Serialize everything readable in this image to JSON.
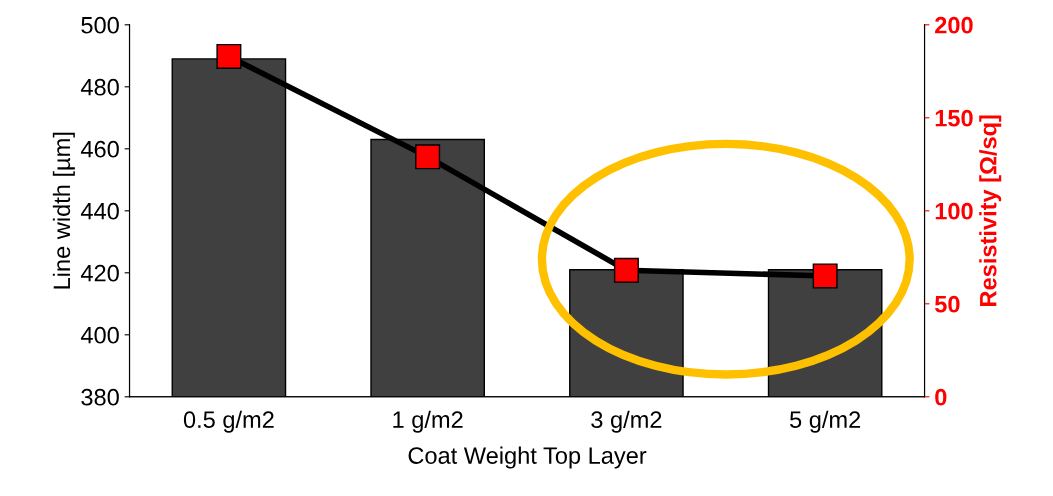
{
  "chart_data": {
    "type": "bar",
    "xlabel": "Coat Weight Top Layer",
    "ylabel": "Line width [µm]",
    "y2label": "Resistivity [Ω/sq]",
    "categories": [
      "0.5 g/m2",
      "1 g/m2",
      "3 g/m2",
      "5 g/m2"
    ],
    "series": [
      {
        "color": "#404040",
        "values": [
          489,
          463,
          421,
          421
        ]
      },
      {
        "type": "line",
        "axis": "y2",
        "color": "#000000",
        "marker": "square",
        "values": [
          183,
          129,
          68,
          65
        ]
      }
    ],
    "ylim": [
      380,
      500
    ],
    "yticks": [
      380,
      400,
      420,
      440,
      460,
      480,
      500
    ],
    "y2lim": [
      0,
      200
    ],
    "y2ticks": [
      0,
      50,
      100,
      150,
      200
    ],
    "grid": false,
    "legend": false
  }
}
